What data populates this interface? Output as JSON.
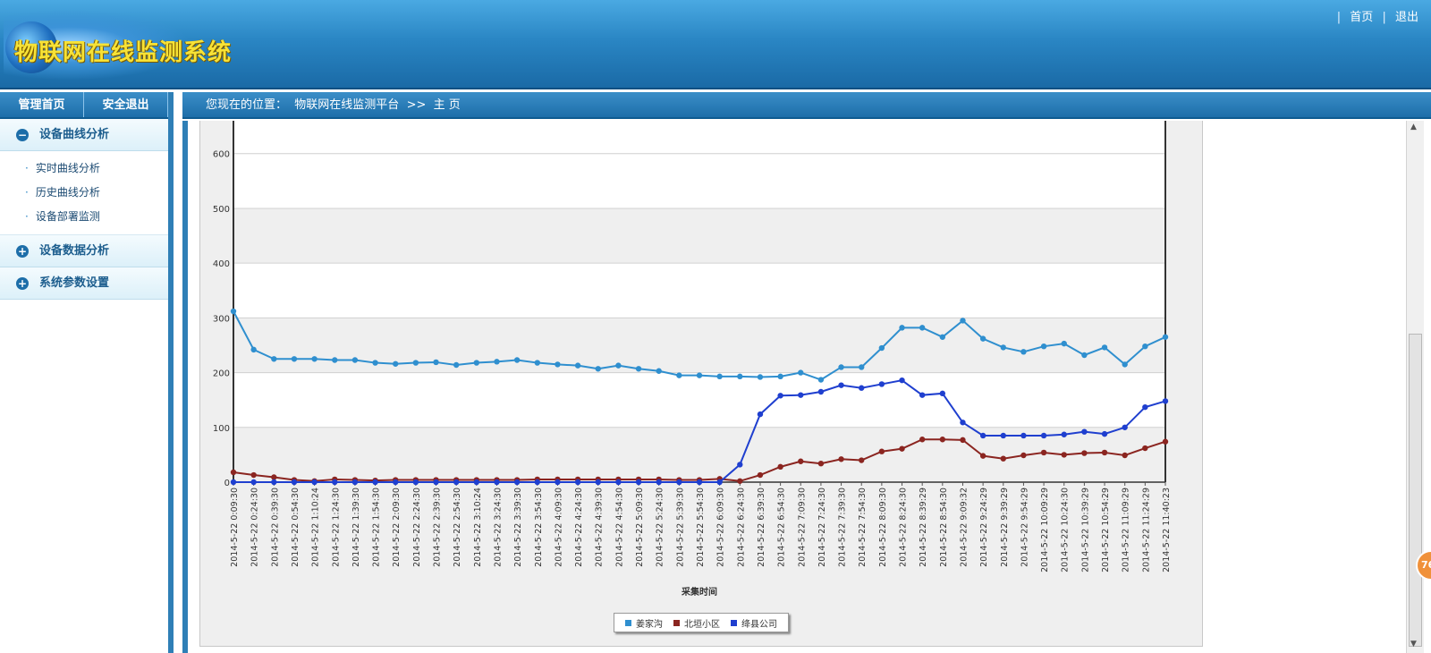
{
  "header": {
    "logo_text": "物联网在线监测系统",
    "links": [
      "首页",
      "退出"
    ],
    "separator": "|"
  },
  "left_tabs": [
    "管理首页",
    "安全退出"
  ],
  "menu": {
    "group1": {
      "label": "设备曲线分析",
      "icon": "minus-icon",
      "items": [
        "实时曲线分析",
        "历史曲线分析",
        "设备部署监测"
      ]
    },
    "group2": {
      "label": "设备数据分析",
      "icon": "plus-icon"
    },
    "group3": {
      "label": "系统参数设置",
      "icon": "plus-icon"
    }
  },
  "breadcrumb": {
    "prefix": "您现在的位置：",
    "platform": "物联网在线监测平台",
    "arrow": ">>",
    "page": "主 页"
  },
  "bubble": "76",
  "chart_data": {
    "type": "line",
    "xlabel": "采集时间",
    "ylabel": "",
    "ylim": [
      0,
      600
    ],
    "yticks": [
      0,
      100,
      200,
      300,
      400,
      500,
      600
    ],
    "grid": true,
    "legend_position": "bottom-center",
    "categories": [
      "2014-5-22 0:09:30",
      "2014-5-22 0:24:30",
      "2014-5-22 0:39:30",
      "2014-5-22 0:54:30",
      "2014-5-22 1:10:24",
      "2014-5-22 1:24:30",
      "2014-5-22 1:39:30",
      "2014-5-22 1:54:30",
      "2014-5-22 2:09:30",
      "2014-5-22 2:24:30",
      "2014-5-22 2:39:30",
      "2014-5-22 2:54:30",
      "2014-5-22 3:10:24",
      "2014-5-22 3:24:30",
      "2014-5-22 3:39:30",
      "2014-5-22 3:54:30",
      "2014-5-22 4:09:30",
      "2014-5-22 4:24:30",
      "2014-5-22 4:39:30",
      "2014-5-22 4:54:30",
      "2014-5-22 5:09:30",
      "2014-5-22 5:24:30",
      "2014-5-22 5:39:30",
      "2014-5-22 5:54:30",
      "2014-5-22 6:09:30",
      "2014-5-22 6:24:30",
      "2014-5-22 6:39:30",
      "2014-5-22 6:54:30",
      "2014-5-22 7:09:30",
      "2014-5-22 7:24:30",
      "2014-5-22 7:39:30",
      "2014-5-22 7:54:30",
      "2014-5-22 8:09:30",
      "2014-5-22 8:24:30",
      "2014-5-22 8:39:29",
      "2014-5-22 8:54:30",
      "2014-5-22 9:09:32",
      "2014-5-22 9:24:29",
      "2014-5-22 9:39:29",
      "2014-5-22 9:54:29",
      "2014-5-22 10:09:29",
      "2014-5-22 10:24:30",
      "2014-5-22 10:39:29",
      "2014-5-22 10:54:29",
      "2014-5-22 11:09:29",
      "2014-5-22 11:24:29",
      "2014-5-22 11:40:23"
    ],
    "series": [
      {
        "name": "姜家沟",
        "color": "#2f8fcf",
        "values": [
          312,
          242,
          225,
          225,
          225,
          223,
          223,
          218,
          216,
          218,
          219,
          214,
          218,
          220,
          223,
          218,
          215,
          213,
          207,
          213,
          207,
          203,
          195,
          195,
          193,
          193,
          192,
          193,
          200,
          187,
          210,
          210,
          245,
          282,
          282,
          265,
          295,
          262,
          246,
          238,
          248,
          253,
          232,
          246,
          215,
          248,
          265
        ]
      },
      {
        "name": "北垣小区",
        "color": "#8b2520",
        "values": [
          18,
          13,
          9,
          4,
          2,
          5,
          4,
          3,
          4,
          4,
          4,
          4,
          4,
          4,
          4,
          5,
          5,
          5,
          5,
          5,
          5,
          5,
          4,
          4,
          6,
          2,
          13,
          28,
          38,
          34,
          42,
          40,
          56,
          61,
          78,
          78,
          77,
          48,
          43,
          49,
          54,
          50,
          53,
          54,
          49,
          62,
          74
        ]
      },
      {
        "name": "绛县公司",
        "color": "#1f3fcf",
        "values": [
          0,
          0,
          0,
          0,
          0,
          0,
          0,
          0,
          0,
          0,
          0,
          0,
          0,
          0,
          0,
          0,
          0,
          0,
          0,
          0,
          0,
          0,
          0,
          0,
          0,
          32,
          124,
          158,
          159,
          165,
          177,
          172,
          179,
          186,
          159,
          162,
          109,
          85,
          85,
          85,
          85,
          87,
          92,
          88,
          100,
          137,
          148
        ]
      }
    ]
  }
}
